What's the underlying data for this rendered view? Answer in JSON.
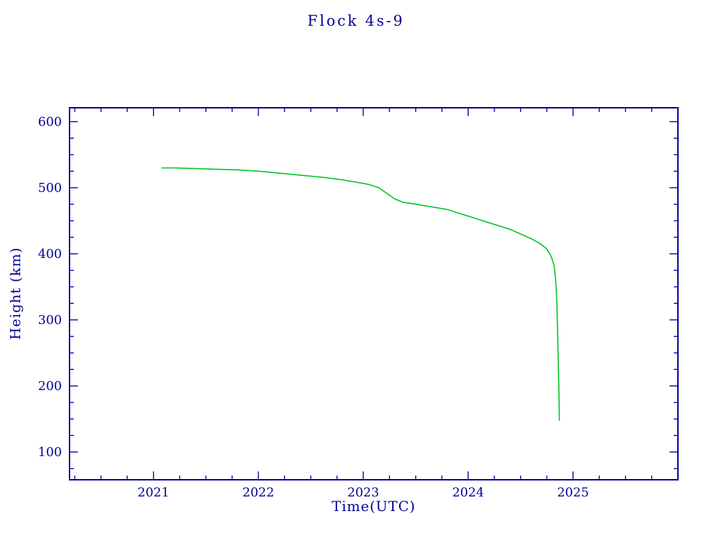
{
  "chart_data": {
    "type": "line",
    "title": "Flock 4s-9",
    "xlabel": "Time(UTC)",
    "ylabel": "Height (km)",
    "xlim": [
      2020.2,
      2026.0
    ],
    "ylim": [
      58,
      621
    ],
    "x_ticks": [
      2021,
      2022,
      2023,
      2024,
      2025
    ],
    "y_ticks": [
      100,
      200,
      300,
      400,
      500,
      600
    ],
    "x_minor_step": 0.25,
    "y_minor_step": 25,
    "grid": false,
    "legend": "none",
    "axis_color": "#00009a",
    "line_color": "#00c321",
    "series": [
      {
        "name": "satellite-height",
        "x": [
          2021.08,
          2021.2,
          2021.4,
          2021.6,
          2021.8,
          2022.0,
          2022.2,
          2022.4,
          2022.6,
          2022.8,
          2022.95,
          2023.05,
          2023.15,
          2023.22,
          2023.3,
          2023.38,
          2023.5,
          2023.65,
          2023.8,
          2023.9,
          2024.0,
          2024.1,
          2024.2,
          2024.3,
          2024.4,
          2024.5,
          2024.6,
          2024.68,
          2024.74,
          2024.78,
          2024.8,
          2024.82,
          2024.835,
          2024.845,
          2024.85,
          2024.855,
          2024.86,
          2024.865,
          2024.87
        ],
        "y": [
          530,
          530,
          529,
          528,
          527,
          525,
          522,
          519,
          516,
          512,
          508,
          505,
          500,
          492,
          483,
          478,
          475,
          471,
          467,
          462,
          457,
          452,
          447,
          442,
          437,
          430,
          423,
          416,
          409,
          400,
          392,
          382,
          360,
          330,
          300,
          265,
          230,
          195,
          148
        ]
      }
    ]
  }
}
